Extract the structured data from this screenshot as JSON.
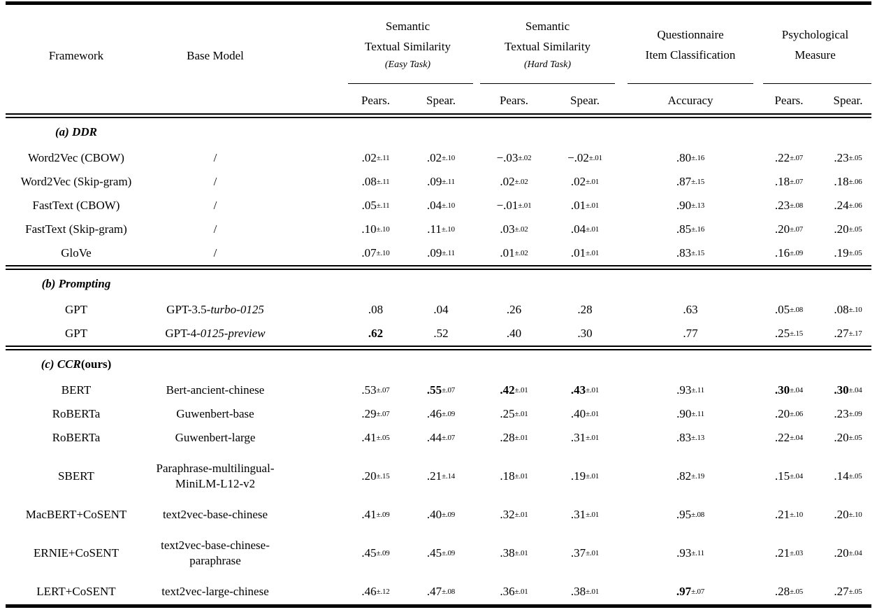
{
  "header": {
    "col1": "Framework",
    "col2": "Base Model",
    "groups": [
      {
        "line1": "Semantic",
        "line2": "Textual Similarity",
        "subtitle": "(Easy Task)"
      },
      {
        "line1": "Semantic",
        "line2": "Textual Similarity",
        "subtitle": "(Hard Task)"
      },
      {
        "line1": "Questionnaire",
        "line2": "Item Classification",
        "subtitle": ""
      },
      {
        "line1": "Psychological",
        "line2": "Measure",
        "subtitle": ""
      }
    ],
    "subheads": [
      "Pears.",
      "Spear.",
      "Pears.",
      "Spear.",
      "Accuracy",
      "Pears.",
      "Spear."
    ]
  },
  "rows": [
    {
      "type": "section",
      "segments": [
        {
          "t": "(a) DDR",
          "st": "bi"
        }
      ]
    },
    {
      "type": "data",
      "framework": "Word2Vec (CBOW)",
      "base": [
        [
          {
            "t": "/"
          }
        ]
      ],
      "cells": [
        {
          "v": ".02",
          "s": "±.11"
        },
        {
          "v": ".02",
          "s": "±.10"
        },
        {
          "v": "−.03",
          "s": "±.02"
        },
        {
          "v": "−.02",
          "s": "±.01"
        },
        {
          "v": ".80",
          "s": "±.16"
        },
        {
          "v": ".22",
          "s": "±.07"
        },
        {
          "v": ".23",
          "s": "±.05"
        }
      ]
    },
    {
      "type": "data",
      "framework": "Word2Vec (Skip-gram)",
      "base": [
        [
          {
            "t": "/"
          }
        ]
      ],
      "cells": [
        {
          "v": ".08",
          "s": "±.11"
        },
        {
          "v": ".09",
          "s": "±.11"
        },
        {
          "v": ".02",
          "s": "±.02"
        },
        {
          "v": ".02",
          "s": "±.01"
        },
        {
          "v": ".87",
          "s": "±.15"
        },
        {
          "v": ".18",
          "s": "±.07"
        },
        {
          "v": ".18",
          "s": "±.06"
        }
      ]
    },
    {
      "type": "data",
      "framework": "FastText (CBOW)",
      "base": [
        [
          {
            "t": "/"
          }
        ]
      ],
      "cells": [
        {
          "v": ".05",
          "s": "±.11"
        },
        {
          "v": ".04",
          "s": "±.10"
        },
        {
          "v": "−.01",
          "s": "±.01"
        },
        {
          "v": ".01",
          "s": "±.01"
        },
        {
          "v": ".90",
          "s": "±.13"
        },
        {
          "v": ".23",
          "s": "±.08"
        },
        {
          "v": ".24",
          "s": "±.06"
        }
      ]
    },
    {
      "type": "data",
      "framework": "FastText (Skip-gram)",
      "base": [
        [
          {
            "t": "/"
          }
        ]
      ],
      "cells": [
        {
          "v": ".10",
          "s": "±.10"
        },
        {
          "v": ".11",
          "s": "±.10"
        },
        {
          "v": ".03",
          "s": "±.02"
        },
        {
          "v": ".04",
          "s": "±.01"
        },
        {
          "v": ".85",
          "s": "±.16"
        },
        {
          "v": ".20",
          "s": "±.07"
        },
        {
          "v": ".20",
          "s": "±.05"
        }
      ]
    },
    {
      "type": "data",
      "framework": "GloVe",
      "base": [
        [
          {
            "t": "/"
          }
        ]
      ],
      "cells": [
        {
          "v": ".07",
          "s": "±.10"
        },
        {
          "v": ".09",
          "s": "±.11"
        },
        {
          "v": ".01",
          "s": "±.02"
        },
        {
          "v": ".01",
          "s": "±.01"
        },
        {
          "v": ".83",
          "s": "±.15"
        },
        {
          "v": ".16",
          "s": "±.09"
        },
        {
          "v": ".19",
          "s": "±.05"
        }
      ]
    },
    {
      "type": "rule"
    },
    {
      "type": "section",
      "segments": [
        {
          "t": "(b) Prompting",
          "st": "bi"
        }
      ]
    },
    {
      "type": "data",
      "framework": "GPT",
      "base": [
        [
          {
            "t": "GPT-3.5-"
          },
          {
            "t": "turbo-0125",
            "i": true
          }
        ]
      ],
      "cells": [
        {
          "v": ".08"
        },
        {
          "v": ".04"
        },
        {
          "v": ".26"
        },
        {
          "v": ".28"
        },
        {
          "v": ".63"
        },
        {
          "v": ".05",
          "s": "±.08"
        },
        {
          "v": ".08",
          "s": "±.10"
        }
      ]
    },
    {
      "type": "data",
      "framework": "GPT",
      "base": [
        [
          {
            "t": "GPT-4-"
          },
          {
            "t": "0125-preview",
            "i": true
          }
        ]
      ],
      "cells": [
        {
          "v": ".62",
          "b": true
        },
        {
          "v": ".52"
        },
        {
          "v": ".40"
        },
        {
          "v": ".30"
        },
        {
          "v": ".77"
        },
        {
          "v": ".25",
          "s": "±.15"
        },
        {
          "v": ".27",
          "s": "±.17"
        }
      ]
    },
    {
      "type": "rule"
    },
    {
      "type": "section",
      "segments": [
        {
          "t": "(c) CCR ",
          "st": "bi"
        },
        {
          "t": "(ours)",
          "st": "b"
        }
      ]
    },
    {
      "type": "data",
      "framework": "BERT",
      "base": [
        [
          {
            "t": "Bert-ancient-chinese"
          }
        ]
      ],
      "cells": [
        {
          "v": ".53",
          "s": "±.07"
        },
        {
          "v": ".55",
          "s": "±.07",
          "b": true
        },
        {
          "v": ".42",
          "s": "±.01",
          "b": true
        },
        {
          "v": ".43",
          "s": "±.01",
          "b": true
        },
        {
          "v": ".93",
          "s": "±.11"
        },
        {
          "v": ".30",
          "s": "±.04",
          "b": true
        },
        {
          "v": ".30",
          "s": "±.04",
          "b": true
        }
      ]
    },
    {
      "type": "data",
      "framework": "RoBERTa",
      "base": [
        [
          {
            "t": "Guwenbert-base"
          }
        ]
      ],
      "cells": [
        {
          "v": ".29",
          "s": "±.07"
        },
        {
          "v": ".46",
          "s": "±.09"
        },
        {
          "v": ".25",
          "s": "±.01"
        },
        {
          "v": ".40",
          "s": "±.01"
        },
        {
          "v": ".90",
          "s": "±.11"
        },
        {
          "v": ".20",
          "s": "±.06"
        },
        {
          "v": ".23",
          "s": "±.09"
        }
      ]
    },
    {
      "type": "data",
      "framework": "RoBERTa",
      "base": [
        [
          {
            "t": "Guwenbert-large"
          }
        ]
      ],
      "cells": [
        {
          "v": ".41",
          "s": "±.05"
        },
        {
          "v": ".44",
          "s": "±.07"
        },
        {
          "v": ".28",
          "s": "±.01"
        },
        {
          "v": ".31",
          "s": "±.01"
        },
        {
          "v": ".83",
          "s": "±.13"
        },
        {
          "v": ".22",
          "s": "±.04"
        },
        {
          "v": ".20",
          "s": "±.05"
        }
      ]
    },
    {
      "type": "data",
      "framework": "SBERT",
      "base": [
        [
          {
            "t": "Paraphrase-multilingual-"
          }
        ],
        [
          {
            "t": "MiniLM-L12-v2"
          }
        ]
      ],
      "cells": [
        {
          "v": ".20",
          "s": "±.15"
        },
        {
          "v": ".21",
          "s": "±.14"
        },
        {
          "v": ".18",
          "s": "±.01"
        },
        {
          "v": ".19",
          "s": "±.01"
        },
        {
          "v": ".82",
          "s": "±.19"
        },
        {
          "v": ".15",
          "s": "±.04"
        },
        {
          "v": ".14",
          "s": "±.05"
        }
      ]
    },
    {
      "type": "data",
      "framework": "MacBERT+CoSENT",
      "base": [
        [
          {
            "t": "text2vec-base-chinese"
          }
        ]
      ],
      "cells": [
        {
          "v": ".41",
          "s": "±.09"
        },
        {
          "v": ".40",
          "s": "±.09"
        },
        {
          "v": ".32",
          "s": "±.01"
        },
        {
          "v": ".31",
          "s": "±.01"
        },
        {
          "v": ".95",
          "s": "±.08"
        },
        {
          "v": ".21",
          "s": "±.10"
        },
        {
          "v": ".20",
          "s": "±.10"
        }
      ]
    },
    {
      "type": "data",
      "framework": "ERNIE+CoSENT",
      "base": [
        [
          {
            "t": "text2vec-base-chinese-"
          }
        ],
        [
          {
            "t": "paraphrase"
          }
        ]
      ],
      "cells": [
        {
          "v": ".45",
          "s": "±.09"
        },
        {
          "v": ".45",
          "s": "±.09"
        },
        {
          "v": ".38",
          "s": "±.01"
        },
        {
          "v": ".37",
          "s": "±.01"
        },
        {
          "v": ".93",
          "s": "±.11"
        },
        {
          "v": ".21",
          "s": "±.03"
        },
        {
          "v": ".20",
          "s": "±.04"
        }
      ]
    },
    {
      "type": "data",
      "framework": "LERT+CoSENT",
      "base": [
        [
          {
            "t": "text2vec-large-chinese"
          }
        ]
      ],
      "cells": [
        {
          "v": ".46",
          "s": "±.12"
        },
        {
          "v": ".47",
          "s": "±.08"
        },
        {
          "v": ".36",
          "s": "±.01"
        },
        {
          "v": ".38",
          "s": "±.01"
        },
        {
          "v": ".97",
          "s": "±.07",
          "b": true
        },
        {
          "v": ".28",
          "s": "±.05"
        },
        {
          "v": ".27",
          "s": "±.05"
        }
      ]
    }
  ]
}
